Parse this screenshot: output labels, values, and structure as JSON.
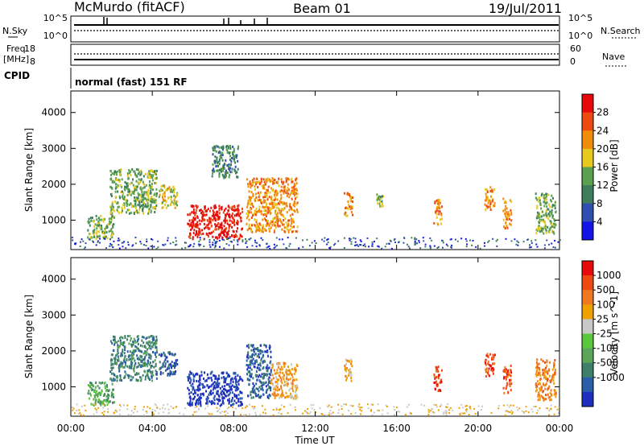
{
  "header": {
    "station": "McMurdo (fitACF)",
    "beam": "Beam 01",
    "date": "19/Jul/2011"
  },
  "strips": {
    "nsky_label": "N.Sky",
    "nsky_ticks": [
      "10^5",
      "10^0"
    ],
    "nsearch_label": "N.Search",
    "nsearch_ticks": [
      "10^5",
      "10^0"
    ],
    "freq_label": "Freq.",
    "freq_unit": "[MHz]",
    "freq_ticks": [
      "18",
      "8"
    ],
    "nave_label": "Nave",
    "nave_ticks": [
      "60",
      "0"
    ],
    "cpid_label": "CPID",
    "cpid_text": "normal (fast) 151 RF"
  },
  "chart_data": [
    {
      "type": "heatmap",
      "panel": "power",
      "ylabel": "Slant Range [km]",
      "xlabel": "Time UT",
      "x_ticks": [
        "00:00",
        "04:00",
        "08:00",
        "12:00",
        "16:00",
        "20:00",
        "00:00"
      ],
      "x_range_hours": [
        0,
        24
      ],
      "y_ticks": [
        1000,
        2000,
        3000,
        4000
      ],
      "ylim": [
        180,
        4600
      ],
      "colorbar": {
        "label": "Power [dB]",
        "ticks": [
          "4",
          "8",
          "12",
          "16",
          "20",
          "24",
          "28"
        ],
        "colors": [
          "#1414e6",
          "#2f4fb0",
          "#3d7d5a",
          "#5aa04e",
          "#e6c81e",
          "#f08c0a",
          "#ee4a10",
          "#e60a0a"
        ]
      },
      "regions": [
        {
          "t0": 0.8,
          "t1": 2.1,
          "r0": 500,
          "r1": 1150,
          "level": 3
        },
        {
          "t0": 1.9,
          "t1": 4.2,
          "r0": 1200,
          "r1": 2450,
          "level": 3
        },
        {
          "t0": 4.3,
          "t1": 5.2,
          "r0": 1350,
          "r1": 2000,
          "level": 4
        },
        {
          "t0": 5.7,
          "t1": 8.4,
          "r0": 500,
          "r1": 1450,
          "level": 7
        },
        {
          "t0": 6.9,
          "t1": 8.2,
          "r0": 2200,
          "r1": 3100,
          "level": 2
        },
        {
          "t0": 8.6,
          "t1": 11.1,
          "r0": 700,
          "r1": 2200,
          "level": 5
        },
        {
          "t0": 13.4,
          "t1": 13.8,
          "r0": 1150,
          "r1": 1800,
          "level": 5
        },
        {
          "t0": 15.0,
          "t1": 15.3,
          "r0": 1400,
          "r1": 1750,
          "level": 3
        },
        {
          "t0": 17.8,
          "t1": 18.2,
          "r0": 900,
          "r1": 1600,
          "level": 5
        },
        {
          "t0": 20.3,
          "t1": 20.8,
          "r0": 1300,
          "r1": 1950,
          "level": 5
        },
        {
          "t0": 21.2,
          "t1": 21.6,
          "r0": 800,
          "r1": 1650,
          "level": 5
        },
        {
          "t0": 22.8,
          "t1": 23.8,
          "r0": 650,
          "r1": 1800,
          "level": 3
        }
      ]
    },
    {
      "type": "heatmap",
      "panel": "velocity",
      "ylabel": "Slant Range [km]",
      "xlabel": "Time UT",
      "x_ticks": [
        "00:00",
        "04:00",
        "08:00",
        "12:00",
        "16:00",
        "20:00",
        "00:00"
      ],
      "x_range_hours": [
        0,
        24
      ],
      "y_ticks": [
        1000,
        2000,
        3000,
        4000
      ],
      "ylim": [
        180,
        4600
      ],
      "colorbar": {
        "label": "Velocity [m s^-1]",
        "ticks": [
          "1000",
          "500",
          "100",
          "25",
          "-25",
          "-100",
          "-500",
          "-1000"
        ],
        "colors": [
          "#1e2fbe",
          "#2a5fa8",
          "#3d7f6a",
          "#5aa55a",
          "#58c83a",
          "#c8c8c8",
          "#f0a000",
          "#f07820",
          "#ee4a10",
          "#e60a0a"
        ]
      },
      "regions": [
        {
          "t0": 0.8,
          "t1": 2.1,
          "r0": 500,
          "r1": 1150,
          "level": 3
        },
        {
          "t0": 1.9,
          "t1": 4.2,
          "r0": 1200,
          "r1": 2450,
          "level": 2
        },
        {
          "t0": 4.3,
          "t1": 5.2,
          "r0": 1350,
          "r1": 2000,
          "level": 1
        },
        {
          "t0": 5.7,
          "t1": 8.4,
          "r0": 500,
          "r1": 1450,
          "level": 0
        },
        {
          "t0": 8.6,
          "t1": 9.8,
          "r0": 700,
          "r1": 2200,
          "level": 1
        },
        {
          "t0": 9.8,
          "t1": 11.1,
          "r0": 700,
          "r1": 1700,
          "level": 6
        },
        {
          "t0": 13.4,
          "t1": 13.8,
          "r0": 1150,
          "r1": 1800,
          "level": 6
        },
        {
          "t0": 17.8,
          "t1": 18.2,
          "r0": 900,
          "r1": 1600,
          "level": 8
        },
        {
          "t0": 20.3,
          "t1": 20.8,
          "r0": 1300,
          "r1": 1950,
          "level": 8
        },
        {
          "t0": 21.2,
          "t1": 21.6,
          "r0": 800,
          "r1": 1650,
          "level": 8
        },
        {
          "t0": 22.8,
          "t1": 23.8,
          "r0": 650,
          "r1": 1800,
          "level": 7
        }
      ]
    }
  ]
}
